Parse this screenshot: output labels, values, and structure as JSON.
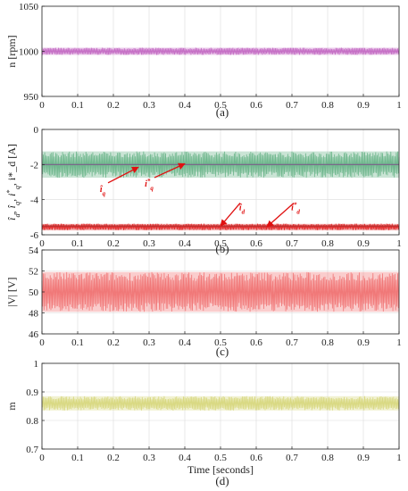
{
  "chart_data": [
    {
      "type": "line",
      "caption": "(a)",
      "ylabel": "n [rpm]",
      "xlim": [
        0,
        1
      ],
      "ylim": [
        950,
        1050
      ],
      "xticks": [
        "0",
        "0.1",
        "0.2",
        "0.3",
        "0.4",
        "0.5",
        "0.6",
        "0.7",
        "0.8",
        "0.9",
        "1"
      ],
      "yticks": [
        "950",
        "1000",
        "1050"
      ],
      "grid": true,
      "series": [
        {
          "color": "#c266c2",
          "center": 1000,
          "band": [
            996,
            1004
          ]
        }
      ]
    },
    {
      "type": "line",
      "caption": "(b)",
      "ylabel": "î_d, î_q, i*_q, i*_d [A]",
      "xlim": [
        0,
        1
      ],
      "ylim": [
        -6,
        0
      ],
      "xticks": [
        "0",
        "0.1",
        "0.2",
        "0.3",
        "0.4",
        "0.5",
        "0.6",
        "0.7",
        "0.8",
        "0.9",
        "1"
      ],
      "yticks": [
        "-6",
        "-4",
        "-2",
        "0"
      ],
      "grid": true,
      "series": [
        {
          "color": "#66b386",
          "center": -2.0,
          "band": [
            -2.75,
            -1.25
          ]
        },
        {
          "color": "#7b5c8a",
          "center": -2.0,
          "band": [
            -2.0,
            -2.0
          ]
        },
        {
          "color": "#e02020",
          "center": -5.55,
          "band": [
            -5.75,
            -5.38
          ]
        },
        {
          "color": "#b03030",
          "center": -5.5,
          "band": [
            -5.5,
            -5.5
          ]
        }
      ],
      "annotations": [
        {
          "text": "î_q",
          "label_at": [
            0.17,
            -3.55
          ],
          "arrow_to": [
            0.27,
            -2.15
          ]
        },
        {
          "text": "i*_q",
          "label_at": [
            0.3,
            -3.25
          ],
          "arrow_to": [
            0.4,
            -1.95
          ]
        },
        {
          "text": "î_d",
          "label_at": [
            0.56,
            -4.6
          ],
          "arrow_to": [
            0.5,
            -5.5
          ]
        },
        {
          "text": "i*_d",
          "label_at": [
            0.71,
            -4.6
          ],
          "arrow_to": [
            0.63,
            -5.55
          ]
        }
      ]
    },
    {
      "type": "line",
      "caption": "(c)",
      "ylabel": "|V| [V]",
      "xlim": [
        0,
        1
      ],
      "ylim": [
        46,
        54
      ],
      "xticks": [
        "0",
        "0.1",
        "0.2",
        "0.3",
        "0.4",
        "0.5",
        "0.6",
        "0.7",
        "0.8",
        "0.9",
        "1"
      ],
      "yticks": [
        "46",
        "48",
        "50",
        "52",
        "54"
      ],
      "grid": true,
      "series": [
        {
          "color": "#f07070",
          "center": 50,
          "band": [
            48.1,
            51.9
          ]
        }
      ]
    },
    {
      "type": "line",
      "caption": "(d)",
      "ylabel": "m",
      "xlabel": "Time [seconds]",
      "xlim": [
        0,
        1
      ],
      "ylim": [
        0.7,
        1
      ],
      "xticks": [
        "0",
        "0.1",
        "0.2",
        "0.3",
        "0.4",
        "0.5",
        "0.6",
        "0.7",
        "0.8",
        "0.9",
        "1"
      ],
      "yticks": [
        "0.7",
        "0.8",
        "0.9",
        "1"
      ],
      "grid": true,
      "series": [
        {
          "color": "#d6d67a",
          "center": 0.86,
          "band": [
            0.835,
            0.885
          ]
        }
      ]
    }
  ]
}
